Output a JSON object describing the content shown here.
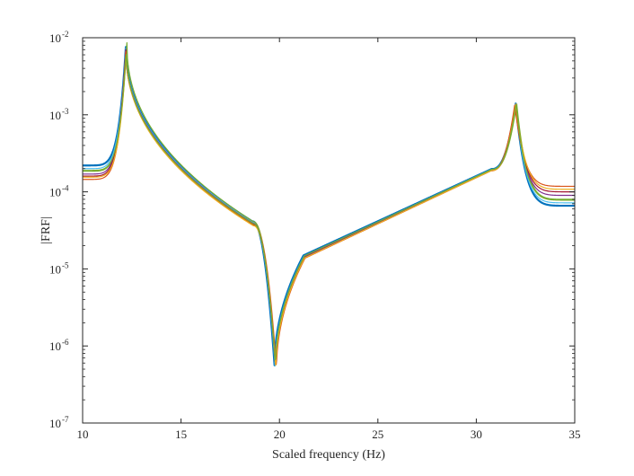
{
  "chart_data": {
    "type": "line",
    "title": "",
    "xlabel": "Scaled frequency (Hz)",
    "ylabel": "|FRF|",
    "xlim": [
      10,
      35
    ],
    "ylim": [
      1e-07,
      0.01
    ],
    "yscale": "log",
    "grid": false,
    "x_ticks": [
      {
        "value": 10,
        "label": "10"
      },
      {
        "value": 15,
        "label": "15"
      },
      {
        "value": 20,
        "label": "20"
      },
      {
        "value": 25,
        "label": "25"
      },
      {
        "value": 30,
        "label": "30"
      },
      {
        "value": 35,
        "label": "35"
      }
    ],
    "y_ticks": [
      {
        "value": 1e-07,
        "base": "10",
        "exp": "-7"
      },
      {
        "value": 1e-06,
        "base": "10",
        "exp": "-6"
      },
      {
        "value": 1e-05,
        "base": "10",
        "exp": "-5"
      },
      {
        "value": 0.0001,
        "base": "10",
        "exp": "-4"
      },
      {
        "value": 0.001,
        "base": "10",
        "exp": "-3"
      },
      {
        "value": 0.01,
        "base": "10",
        "exp": "-2"
      }
    ],
    "series": [
      {
        "color": "#0072BD",
        "f1": 12.2,
        "f2": 32.0,
        "fa": 19.75,
        "start": 0.00022,
        "peak1": 0.008,
        "trough": 5.6e-07,
        "peak2": 0.0014,
        "end": 6.6e-05
      },
      {
        "color": "#4DBEEE",
        "f1": 12.2,
        "f2": 32.0,
        "fa": 19.78,
        "start": 0.0002,
        "peak1": 0.0078,
        "trough": 5.4e-07,
        "peak2": 0.0014,
        "end": 7.2e-05
      },
      {
        "color": "#77AC30",
        "f1": 12.25,
        "f2": 32.05,
        "fa": 19.8,
        "start": 0.000185,
        "peak1": 0.0086,
        "trough": 5.2e-07,
        "peak2": 0.00142,
        "end": 8e-05
      },
      {
        "color": "#7E2F8E",
        "f1": 12.2,
        "f2": 32.0,
        "fa": 19.8,
        "start": 0.00017,
        "peak1": 0.0075,
        "trough": 5.3e-07,
        "peak2": 0.00138,
        "end": 9e-05
      },
      {
        "color": "#A2142F",
        "f1": 12.2,
        "f2": 32.0,
        "fa": 19.82,
        "start": 0.00016,
        "peak1": 0.0072,
        "trough": 5.1e-07,
        "peak2": 0.00136,
        "end": 0.0001
      },
      {
        "color": "#D95319",
        "f1": 12.2,
        "f2": 31.95,
        "fa": 19.85,
        "start": 0.000145,
        "peak1": 0.007,
        "trough": 5e-07,
        "peak2": 0.00135,
        "end": 0.000118
      },
      {
        "color": "#EDB120",
        "f1": 12.22,
        "f2": 32.0,
        "fa": 19.82,
        "start": 0.000155,
        "peak1": 0.0068,
        "trough": 5e-07,
        "peak2": 0.00137,
        "end": 0.000108
      },
      {
        "color": "#77AC30",
        "f1": 12.22,
        "f2": 32.02,
        "fa": 19.8,
        "start": 0.00019,
        "peak1": 0.007,
        "trough": 5.5e-07,
        "peak2": 0.00139,
        "end": 7.8e-05
      }
    ]
  }
}
